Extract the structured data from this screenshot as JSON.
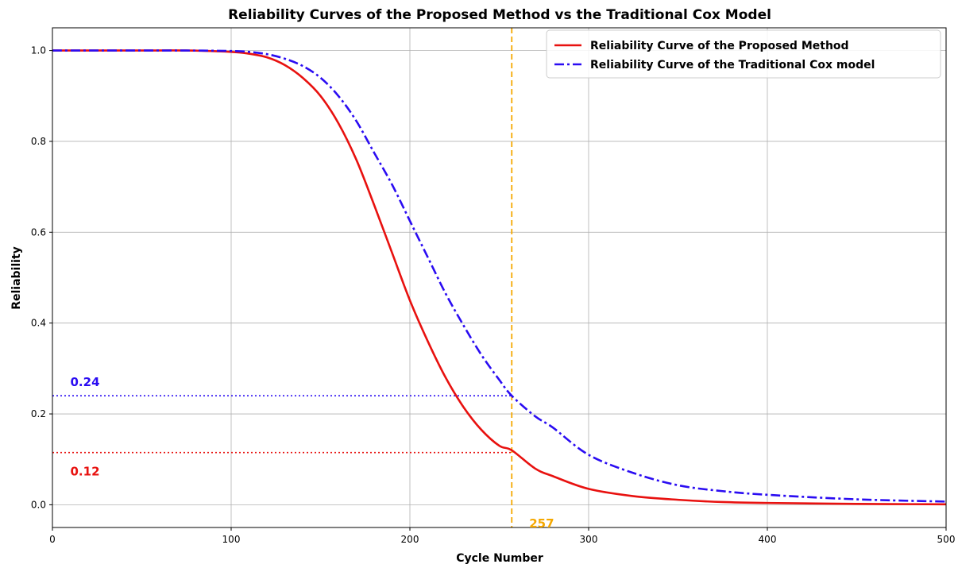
{
  "chart_data": {
    "type": "line",
    "title": "Reliability Curves of the Proposed Method vs the Traditional Cox Model",
    "xlabel": "Cycle Number",
    "ylabel": "Reliability",
    "xlim": [
      0,
      500
    ],
    "ylim": [
      -0.05,
      1.05
    ],
    "xticks": [
      0,
      100,
      200,
      300,
      400,
      500
    ],
    "xtick_labels": [
      "0",
      "100",
      "200",
      "300",
      "400",
      "500"
    ],
    "yticks": [
      0.0,
      0.2,
      0.4,
      0.6,
      0.8,
      1.0
    ],
    "ytick_labels": [
      "0.0",
      "0.2",
      "0.4",
      "0.6",
      "0.8",
      "1.0"
    ],
    "grid": true,
    "legend_position": "top-right",
    "series": [
      {
        "name": "Reliability Curve of the Proposed Method",
        "color": "#e8110f",
        "style": "solid",
        "x": [
          0,
          25,
          50,
          75,
          100,
          110,
          120,
          130,
          140,
          150,
          160,
          170,
          180,
          190,
          200,
          210,
          220,
          230,
          240,
          250,
          257,
          270,
          280,
          300,
          325,
          350,
          375,
          400,
          450,
          500
        ],
        "y": [
          1.0,
          1.0,
          1.0,
          1.0,
          0.997,
          0.993,
          0.985,
          0.968,
          0.94,
          0.9,
          0.84,
          0.76,
          0.66,
          0.555,
          0.45,
          0.36,
          0.28,
          0.215,
          0.165,
          0.13,
          0.12,
          0.08,
          0.063,
          0.035,
          0.019,
          0.011,
          0.006,
          0.004,
          0.002,
          0.001
        ]
      },
      {
        "name": "Reliability Curve of the Traditional Cox model",
        "color": "#2a0cf2",
        "style": "dashdot",
        "x": [
          0,
          25,
          50,
          75,
          100,
          110,
          120,
          130,
          140,
          150,
          160,
          170,
          180,
          190,
          200,
          210,
          220,
          230,
          240,
          250,
          257,
          270,
          280,
          300,
          325,
          350,
          375,
          400,
          450,
          500
        ],
        "y": [
          1.0,
          1.0,
          1.0,
          1.0,
          0.999,
          0.997,
          0.992,
          0.982,
          0.966,
          0.94,
          0.9,
          0.845,
          0.775,
          0.705,
          0.625,
          0.545,
          0.465,
          0.395,
          0.33,
          0.275,
          0.24,
          0.195,
          0.17,
          0.11,
          0.07,
          0.043,
          0.03,
          0.022,
          0.012,
          0.007
        ]
      }
    ],
    "reference_lines": [
      {
        "orientation": "vertical",
        "x": 257,
        "color": "#f5a800",
        "style": "dashed",
        "label": "257"
      },
      {
        "orientation": "horizontal",
        "y": 0.24,
        "x_end": 257,
        "color": "#2a0cf2",
        "style": "dotted",
        "label": "0.24"
      },
      {
        "orientation": "horizontal",
        "y": 0.115,
        "x_end": 257,
        "color": "#e8110f",
        "style": "dotted",
        "label": "0.12"
      }
    ]
  }
}
